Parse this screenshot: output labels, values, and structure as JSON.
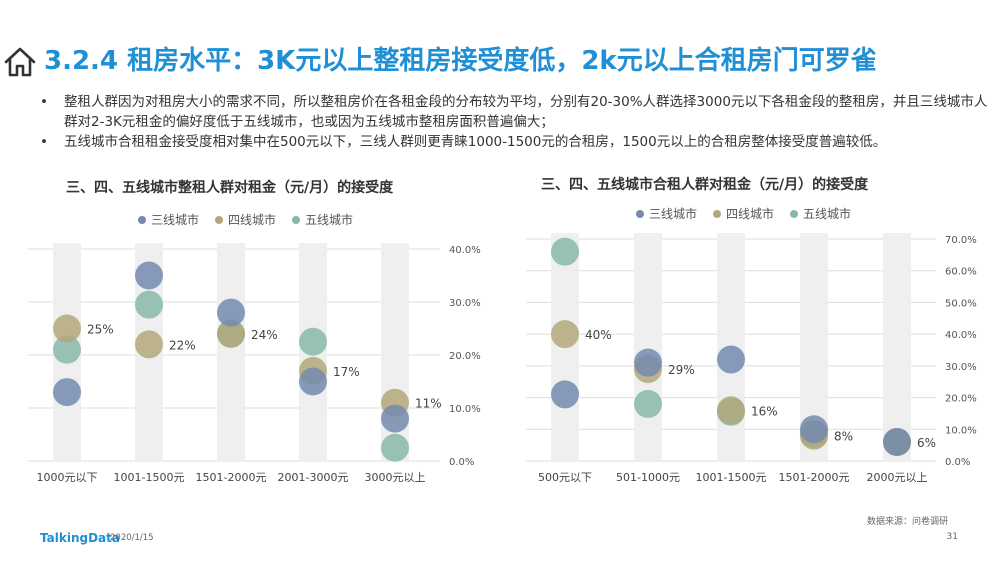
{
  "header": {
    "home_icon": "home-icon",
    "title": "3.2.4 租房水平：3K元以上整租房接受度低，2k元以上合租房门可罗雀"
  },
  "bullets": [
    {
      "symbol": "•",
      "text": "整租人群因为对租房大小的需求不同，所以整租房价在各租金段的分布较为平均，分别有20-30%人群选择3000元以下各租金段的整租房，并且三线城市人群对2-3K元租金的偏好度低于五线城市，也或因为五线城市整租房面积普遍偏大；"
    },
    {
      "symbol": "•",
      "text": "五线城市合租租金接受度相对集中在500元以下，三线人群则更青睐1000-1500元的合租房，1500元以上的合租房整体接受度普遍较低。"
    }
  ],
  "colors": {
    "accent": "#1f8fd6",
    "tier3": "#7489ae",
    "tier4": "#b3a77a",
    "tier5": "#86b8a8",
    "track": "#efefef"
  },
  "chart_data": [
    {
      "type": "scatter",
      "title": "三、四、五线城市整租人群对租金（元/月）的接受度",
      "categories": [
        "1000元以下",
        "1001-1500元",
        "1501-2000元",
        "2001-3000元",
        "3000元以上"
      ],
      "series": [
        {
          "name": "三线城市",
          "values": [
            13,
            35,
            28,
            15,
            8
          ]
        },
        {
          "name": "四线城市",
          "values": [
            25,
            22,
            24,
            17,
            11
          ]
        },
        {
          "name": "五线城市",
          "values": [
            21,
            29.5,
            24,
            22.5,
            2.5
          ]
        }
      ],
      "data_labels": [
        "25%",
        "22%",
        "24%",
        "17%",
        "11%"
      ],
      "ylim": [
        0,
        40
      ],
      "yticks": [
        "0.0%",
        "10.0%",
        "20.0%",
        "30.0%",
        "40.0%"
      ],
      "grid": true,
      "legend": "top"
    },
    {
      "type": "scatter",
      "title": "三、四、五线城市合租人群对租金（元/月）的接受度",
      "categories": [
        "500元以下",
        "501-1000元",
        "1001-1500元",
        "1501-2000元",
        "2000元以上"
      ],
      "series": [
        {
          "name": "三线城市",
          "values": [
            21,
            31,
            32,
            10,
            6
          ]
        },
        {
          "name": "四线城市",
          "values": [
            40,
            29,
            16,
            8,
            6
          ]
        },
        {
          "name": "五线城市",
          "values": [
            66,
            18,
            15.5,
            8.5,
            6
          ]
        }
      ],
      "data_labels": [
        "40%",
        "29%",
        "16%",
        "8%",
        "6%"
      ],
      "ylim": [
        0,
        70
      ],
      "yticks": [
        "0.0%",
        "10.0%",
        "20.0%",
        "30.0%",
        "40.0%",
        "50.0%",
        "60.0%",
        "70.0%"
      ],
      "grid": true,
      "legend": "top"
    }
  ],
  "footer": {
    "logo": "TalkingData",
    "date": "2020/1/15",
    "source": "数据来源：问卷调研",
    "page": "31"
  }
}
